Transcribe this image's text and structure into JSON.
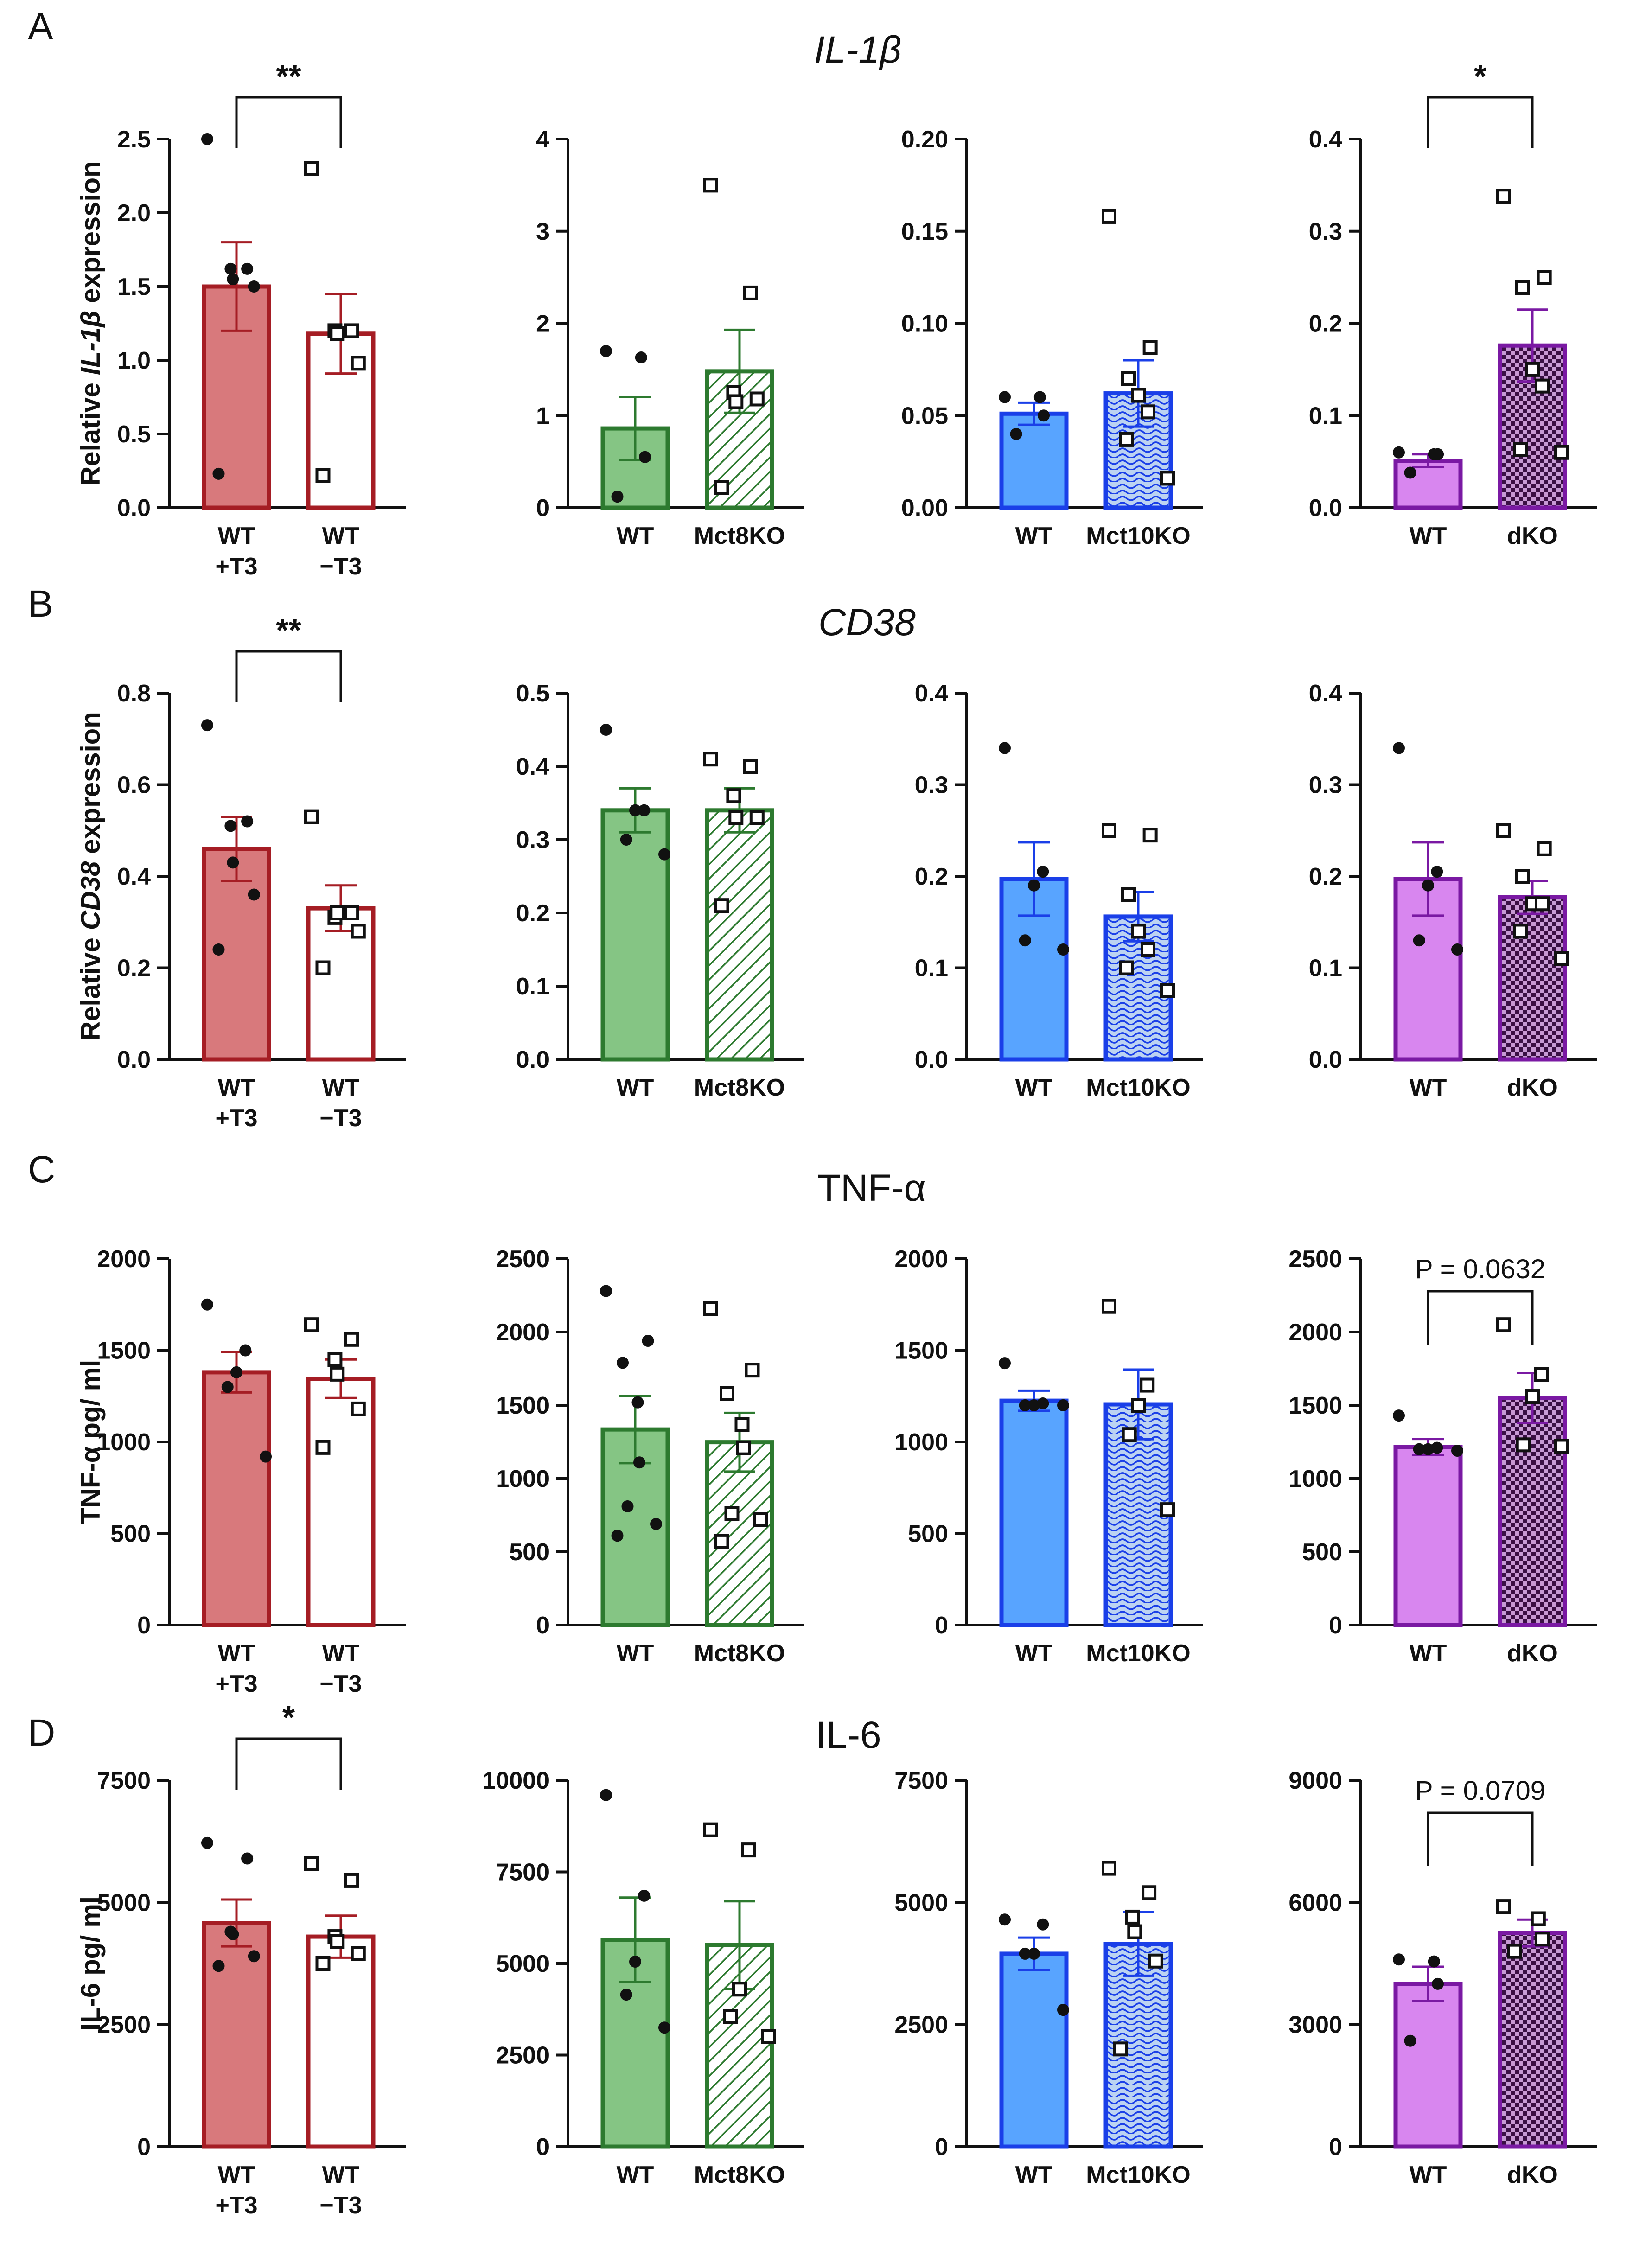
{
  "colors": {
    "red": "#a51d24",
    "red_fill": "#d8797c",
    "green": "#2d7a2f",
    "green_fill": "#85c584",
    "blue": "#1a3fe8",
    "blue_fill": "#58a4ff",
    "purple": "#7a19a3",
    "purple_fill": "#d886ef"
  },
  "rows": [
    {
      "letter": "A",
      "title": "IL-1β",
      "italic": true,
      "ylabel_pre": "Relative ",
      "ylabel_it": "IL-1β",
      "ylabel_post": " expression"
    },
    {
      "letter": "B",
      "title": "CD38",
      "italic": true,
      "ylabel_pre": "Relative ",
      "ylabel_it": "CD38",
      "ylabel_post": " expression"
    },
    {
      "letter": "C",
      "title": "TNF-α",
      "italic": false,
      "ylabel_pre": "TNF-α pg/ ml",
      "ylabel_it": "",
      "ylabel_post": ""
    },
    {
      "letter": "D",
      "title": "IL-6",
      "italic": false,
      "ylabel_pre": "IL-6 pg/ ml",
      "ylabel_it": "",
      "ylabel_post": ""
    }
  ],
  "chart_data": [
    {
      "id": "A1",
      "type": "bar",
      "row": 0,
      "col": 0,
      "ylim": [
        0,
        2.5
      ],
      "yticks": [
        "0.0",
        "0.5",
        "1.0",
        "1.5",
        "2.0",
        "2.5"
      ],
      "categories": [
        [
          "WT",
          "+T3"
        ],
        [
          "WT",
          "−T3"
        ]
      ],
      "values": [
        1.5,
        1.18
      ],
      "sem": [
        0.3,
        0.27
      ],
      "points": [
        [
          2.5,
          1.62,
          1.62,
          1.55,
          1.5,
          0.23
        ],
        [
          2.3,
          1.2,
          1.2,
          1.18,
          0.98,
          0.22
        ]
      ],
      "significance": {
        "label": "**"
      }
    },
    {
      "id": "A2",
      "type": "bar",
      "row": 0,
      "col": 1,
      "ylim": [
        0,
        4
      ],
      "yticks": [
        "0",
        "1",
        "2",
        "3",
        "4"
      ],
      "categories": [
        [
          "WT"
        ],
        [
          "Mct8KO"
        ]
      ],
      "values": [
        0.86,
        1.48
      ],
      "sem": [
        0.34,
        0.45
      ],
      "points": [
        [
          1.7,
          1.63,
          0.55,
          0.12
        ],
        [
          3.5,
          2.33,
          1.25,
          1.15,
          1.18,
          0.22
        ]
      ]
    },
    {
      "id": "A3",
      "type": "bar",
      "row": 0,
      "col": 2,
      "ylim": [
        0,
        0.2
      ],
      "yticks": [
        "0.00",
        "0.05",
        "0.10",
        "0.15",
        "0.20"
      ],
      "categories": [
        [
          "WT"
        ],
        [
          "Mct10KO"
        ]
      ],
      "values": [
        0.051,
        0.062
      ],
      "sem": [
        0.006,
        0.018
      ],
      "points": [
        [
          0.06,
          0.06,
          0.05,
          0.04
        ],
        [
          0.158,
          0.087,
          0.07,
          0.061,
          0.052,
          0.037,
          0.016
        ]
      ]
    },
    {
      "id": "A4",
      "type": "bar",
      "row": 0,
      "col": 3,
      "ylim": [
        0,
        0.4
      ],
      "yticks": [
        "0.0",
        "0.1",
        "0.2",
        "0.3",
        "0.4"
      ],
      "categories": [
        [
          "WT"
        ],
        [
          "dKO"
        ]
      ],
      "values": [
        0.051,
        0.176
      ],
      "sem": [
        0.007,
        0.039
      ],
      "points": [
        [
          0.06,
          0.058,
          0.058,
          0.038
        ],
        [
          0.338,
          0.25,
          0.239,
          0.15,
          0.132,
          0.063,
          0.06
        ]
      ],
      "significance": {
        "label": "*"
      }
    },
    {
      "id": "B1",
      "type": "bar",
      "row": 1,
      "col": 0,
      "ylim": [
        0,
        0.8
      ],
      "yticks": [
        "0.0",
        "0.2",
        "0.4",
        "0.6",
        "0.8"
      ],
      "categories": [
        [
          "WT",
          "+T3"
        ],
        [
          "WT",
          "−T3"
        ]
      ],
      "values": [
        0.46,
        0.33
      ],
      "sem": [
        0.07,
        0.05
      ],
      "points": [
        [
          0.73,
          0.52,
          0.51,
          0.43,
          0.36,
          0.24
        ],
        [
          0.53,
          0.32,
          0.31,
          0.32,
          0.28,
          0.2
        ]
      ],
      "significance": {
        "label": "**"
      }
    },
    {
      "id": "B2",
      "type": "bar",
      "row": 1,
      "col": 1,
      "ylim": [
        0,
        0.5
      ],
      "yticks": [
        "0.0",
        "0.1",
        "0.2",
        "0.3",
        "0.4",
        "0.5"
      ],
      "categories": [
        [
          "WT"
        ],
        [
          "Mct8KO"
        ]
      ],
      "values": [
        0.34,
        0.34
      ],
      "sem": [
        0.03,
        0.03
      ],
      "points": [
        [
          0.45,
          0.34,
          0.34,
          0.3,
          0.28
        ],
        [
          0.41,
          0.4,
          0.36,
          0.33,
          0.33,
          0.21
        ]
      ]
    },
    {
      "id": "B3",
      "type": "bar",
      "row": 1,
      "col": 2,
      "ylim": [
        0,
        0.4
      ],
      "yticks": [
        "0.0",
        "0.1",
        "0.2",
        "0.3",
        "0.4"
      ],
      "categories": [
        [
          "WT"
        ],
        [
          "Mct10KO"
        ]
      ],
      "values": [
        0.197,
        0.156
      ],
      "sem": [
        0.04,
        0.027
      ],
      "points": [
        [
          0.34,
          0.205,
          0.19,
          0.13,
          0.12
        ],
        [
          0.25,
          0.245,
          0.18,
          0.14,
          0.12,
          0.1,
          0.075
        ]
      ]
    },
    {
      "id": "B4",
      "type": "bar",
      "row": 1,
      "col": 3,
      "ylim": [
        0,
        0.4
      ],
      "yticks": [
        "0.0",
        "0.1",
        "0.2",
        "0.3",
        "0.4"
      ],
      "categories": [
        [
          "WT"
        ],
        [
          "dKO"
        ]
      ],
      "values": [
        0.197,
        0.177
      ],
      "sem": [
        0.04,
        0.018
      ],
      "points": [
        [
          0.34,
          0.205,
          0.19,
          0.13,
          0.12
        ],
        [
          0.25,
          0.23,
          0.2,
          0.17,
          0.17,
          0.14,
          0.11
        ]
      ]
    },
    {
      "id": "C1",
      "type": "bar",
      "row": 2,
      "col": 0,
      "ylim": [
        0,
        2000
      ],
      "yticks": [
        "0",
        "500",
        "1000",
        "1500",
        "2000"
      ],
      "categories": [
        [
          "WT",
          "+T3"
        ],
        [
          "WT",
          "−T3"
        ]
      ],
      "values": [
        1380,
        1345
      ],
      "sem": [
        110,
        105
      ],
      "points": [
        [
          1750,
          1500,
          1380,
          1300,
          920
        ],
        [
          1640,
          1560,
          1450,
          1370,
          1180,
          970
        ]
      ]
    },
    {
      "id": "C2",
      "type": "bar",
      "row": 2,
      "col": 1,
      "ylim": [
        0,
        2500
      ],
      "yticks": [
        "0",
        "500",
        "1000",
        "1500",
        "2000",
        "2500"
      ],
      "categories": [
        [
          "WT"
        ],
        [
          "Mct8KO"
        ]
      ],
      "values": [
        1335,
        1248
      ],
      "sem": [
        230,
        200
      ],
      "points": [
        [
          2280,
          1940,
          1790,
          1520,
          1110,
          810,
          690,
          610
        ],
        [
          2160,
          1740,
          1580,
          1370,
          1210,
          760,
          720,
          570
        ]
      ]
    },
    {
      "id": "C3",
      "type": "bar",
      "row": 2,
      "col": 2,
      "ylim": [
        0,
        2000
      ],
      "yticks": [
        "0",
        "500",
        "1000",
        "1500",
        "2000"
      ],
      "categories": [
        [
          "WT"
        ],
        [
          "Mct10KO"
        ]
      ],
      "values": [
        1225,
        1205
      ],
      "sem": [
        55,
        190
      ],
      "points": [
        [
          1430,
          1210,
          1200,
          1200,
          1200
        ],
        [
          1740,
          1310,
          1200,
          1040,
          630
        ]
      ]
    },
    {
      "id": "C4",
      "type": "bar",
      "row": 2,
      "col": 3,
      "ylim": [
        0,
        2500
      ],
      "yticks": [
        "0",
        "500",
        "1000",
        "1500",
        "2000",
        "2500"
      ],
      "categories": [
        [
          "WT"
        ],
        [
          "dKO"
        ]
      ],
      "values": [
        1215,
        1550
      ],
      "sem": [
        55,
        170
      ],
      "points": [
        [
          1430,
          1210,
          1200,
          1200,
          1190
        ],
        [
          2050,
          1710,
          1560,
          1230,
          1220
        ]
      ],
      "significance": {
        "label": "P = 0.0632"
      }
    },
    {
      "id": "D1",
      "type": "bar",
      "row": 3,
      "col": 0,
      "ylim": [
        0,
        7500
      ],
      "yticks": [
        "0",
        "2500",
        "5000",
        "7500"
      ],
      "categories": [
        [
          "WT",
          "+T3"
        ],
        [
          "WT",
          "−T3"
        ]
      ],
      "values": [
        4580,
        4300
      ],
      "sem": [
        480,
        430
      ],
      "points": [
        [
          6220,
          5900,
          4400,
          4350,
          3900,
          3700
        ],
        [
          5800,
          5450,
          4300,
          4200,
          3950,
          3750
        ]
      ],
      "significance": {
        "label": "*"
      }
    },
    {
      "id": "D2",
      "type": "bar",
      "row": 3,
      "col": 1,
      "ylim": [
        0,
        10000
      ],
      "yticks": [
        "0",
        "2500",
        "5000",
        "7500",
        "10000"
      ],
      "categories": [
        [
          "WT"
        ],
        [
          "Mct8KO"
        ]
      ],
      "values": [
        5650,
        5500
      ],
      "sem": [
        1150,
        1200
      ],
      "points": [
        [
          9600,
          6850,
          5050,
          4150,
          3250
        ],
        [
          8650,
          8100,
          4300,
          3550,
          3000
        ]
      ]
    },
    {
      "id": "D3",
      "type": "bar",
      "row": 3,
      "col": 2,
      "ylim": [
        0,
        7500
      ],
      "yticks": [
        "0",
        "2500",
        "5000",
        "7500"
      ],
      "categories": [
        [
          "WT"
        ],
        [
          "Mct10KO"
        ]
      ],
      "values": [
        3950,
        4150
      ],
      "sem": [
        330,
        650
      ],
      "points": [
        [
          4650,
          4550,
          3950,
          3950,
          2800
        ],
        [
          5700,
          5200,
          4700,
          4400,
          3800,
          2000
        ]
      ]
    },
    {
      "id": "D4",
      "type": "bar",
      "row": 3,
      "col": 3,
      "ylim": [
        0,
        9000
      ],
      "yticks": [
        "0",
        "3000",
        "6000",
        "9000"
      ],
      "categories": [
        [
          "WT"
        ],
        [
          "dKO"
        ]
      ],
      "values": [
        4000,
        5250
      ],
      "sem": [
        420,
        330
      ],
      "points": [
        [
          4600,
          4550,
          4000,
          2600
        ],
        [
          5900,
          5600,
          5100,
          4800
        ]
      ],
      "significance": {
        "label": "P = 0.0709"
      }
    }
  ]
}
